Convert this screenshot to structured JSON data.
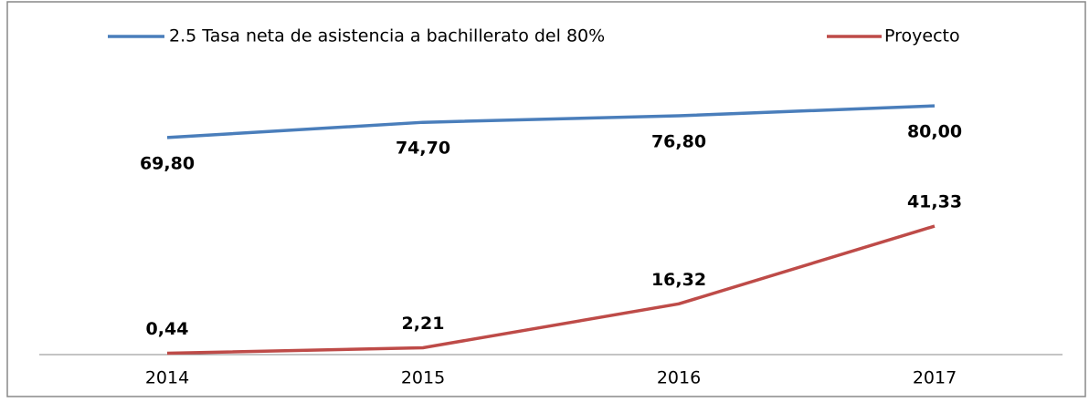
{
  "chart_data": {
    "type": "line",
    "categories": [
      "2014",
      "2015",
      "2016",
      "2017"
    ],
    "series": [
      {
        "name": "2.5 Tasa neta de asistencia a bachillerato del 80%",
        "color": "#4a7ebb",
        "values": [
          69.8,
          74.7,
          76.8,
          80.0
        ],
        "value_labels": [
          "69,80",
          "74,70",
          "76,80",
          "80,00"
        ]
      },
      {
        "name": "Proyecto",
        "color": "#be4b48",
        "values": [
          0.44,
          2.21,
          16.32,
          41.33
        ],
        "value_labels": [
          "0,44",
          "2,21",
          "16,32",
          "41,33"
        ]
      }
    ],
    "ylim": [
      0,
      90
    ]
  }
}
